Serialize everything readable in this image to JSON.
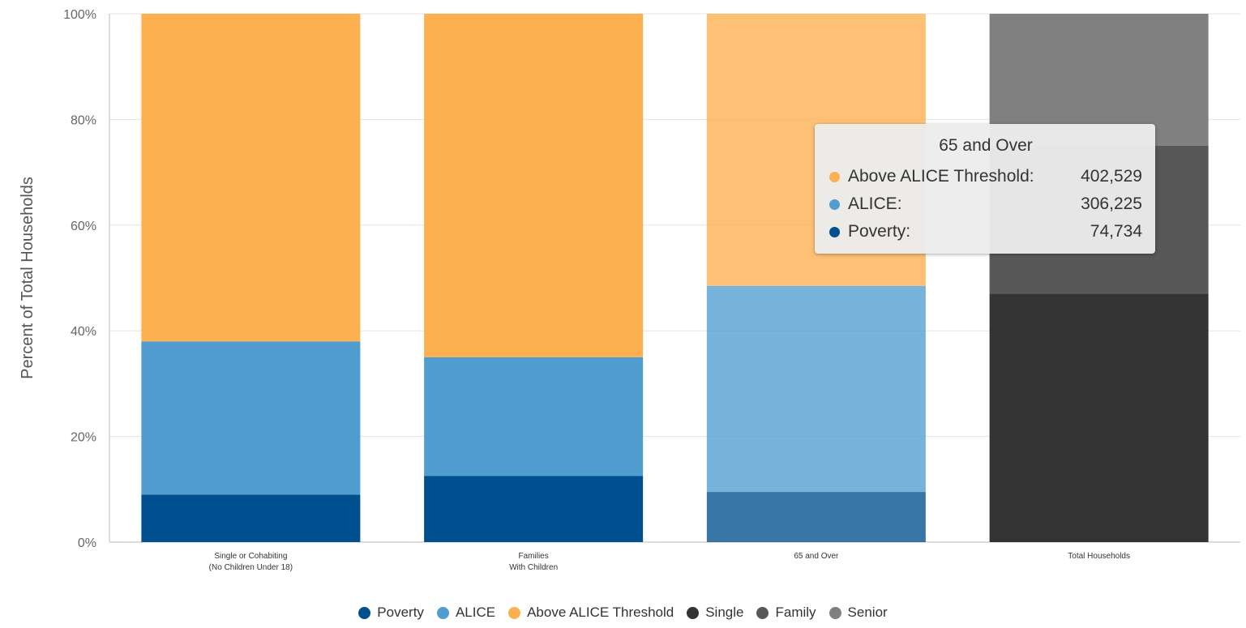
{
  "chart_data": {
    "type": "bar",
    "stacked": true,
    "ylabel": "Percent of Total Households",
    "xlabel": "",
    "ylim": [
      0,
      100
    ],
    "y_ticks": [
      "0%",
      "20%",
      "40%",
      "60%",
      "80%",
      "100%"
    ],
    "grid": true,
    "categories": [
      [
        "Single or Cohabiting",
        "(No Children Under 18)"
      ],
      [
        "Families",
        "With Children"
      ],
      [
        "65 and Over"
      ],
      [
        "Total Households"
      ]
    ],
    "series": [
      {
        "name": "Poverty",
        "color": "#004f8f",
        "values": [
          9,
          12.5,
          9.5,
          null
        ]
      },
      {
        "name": "ALICE",
        "color": "#519dd0",
        "values": [
          29,
          22.5,
          39,
          null
        ]
      },
      {
        "name": "Above ALICE Threshold",
        "color": "#fdb04f",
        "values": [
          62,
          65,
          51.5,
          null
        ]
      },
      {
        "name": "Single",
        "color": "#333333",
        "values": [
          null,
          null,
          null,
          47
        ]
      },
      {
        "name": "Family",
        "color": "#585858",
        "values": [
          null,
          null,
          null,
          28
        ]
      },
      {
        "name": "Senior",
        "color": "#808080",
        "values": [
          null,
          null,
          null,
          25
        ]
      }
    ],
    "hover_category_index": 2,
    "legend_position": "bottom"
  },
  "tooltip": {
    "title": "65 and Over",
    "rows": [
      {
        "label": "Above ALICE Threshold:",
        "value": "402,529",
        "color": "#fdb04f"
      },
      {
        "label": "ALICE:",
        "value": "306,225",
        "color": "#519dd0"
      },
      {
        "label": "Poverty:",
        "value": "74,734",
        "color": "#004f8f"
      }
    ]
  },
  "legend": [
    {
      "label": "Poverty",
      "color": "#004f8f"
    },
    {
      "label": "ALICE",
      "color": "#519dd0"
    },
    {
      "label": "Above ALICE Threshold",
      "color": "#fdb04f"
    },
    {
      "label": "Single",
      "color": "#333333"
    },
    {
      "label": "Family",
      "color": "#585858"
    },
    {
      "label": "Senior",
      "color": "#808080"
    }
  ]
}
